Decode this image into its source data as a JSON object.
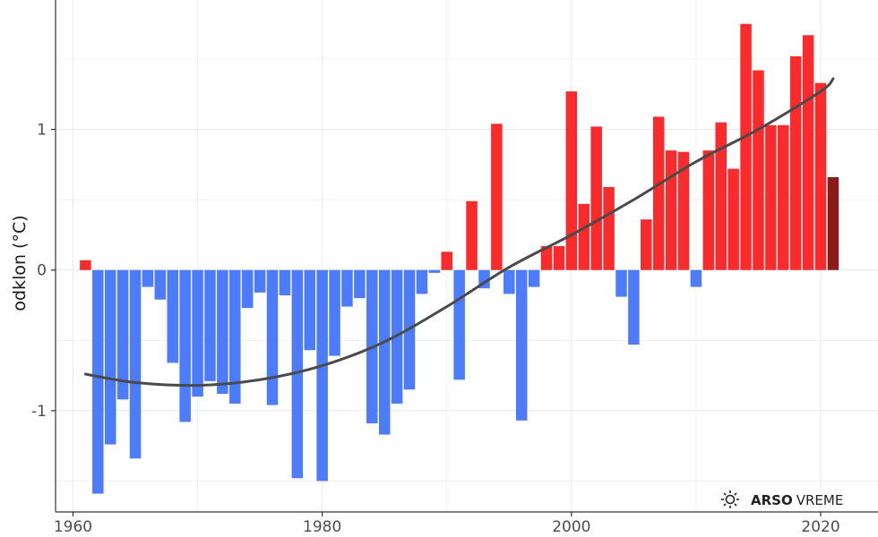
{
  "chart_data": {
    "type": "bar",
    "title": "",
    "xlabel": "",
    "ylabel": "odklon (°C)",
    "x": [
      1961,
      1962,
      1963,
      1964,
      1965,
      1966,
      1967,
      1968,
      1969,
      1970,
      1971,
      1972,
      1973,
      1974,
      1975,
      1976,
      1977,
      1978,
      1979,
      1980,
      1981,
      1982,
      1983,
      1984,
      1985,
      1986,
      1987,
      1988,
      1989,
      1990,
      1991,
      1992,
      1993,
      1994,
      1995,
      1996,
      1997,
      1998,
      1999,
      2000,
      2001,
      2002,
      2003,
      2004,
      2005,
      2006,
      2007,
      2008,
      2009,
      2010,
      2011,
      2012,
      2013,
      2014,
      2015,
      2016,
      2017,
      2018,
      2019,
      2020,
      2021
    ],
    "values": [
      0.07,
      -1.59,
      -1.24,
      -0.92,
      -1.34,
      -0.12,
      -0.21,
      -0.66,
      -1.08,
      -0.9,
      -0.79,
      -0.88,
      -0.95,
      -0.27,
      -0.16,
      -0.96,
      -0.18,
      -1.48,
      -0.57,
      -1.5,
      -0.61,
      -0.26,
      -0.2,
      -1.09,
      -1.17,
      -0.95,
      -0.85,
      -0.17,
      -0.02,
      0.13,
      -0.78,
      0.49,
      -0.13,
      1.04,
      -0.17,
      -1.07,
      -0.12,
      0.17,
      0.17,
      1.27,
      0.47,
      1.02,
      0.59,
      -0.19,
      -0.53,
      0.36,
      1.09,
      0.85,
      0.84,
      -0.12,
      0.85,
      1.05,
      0.72,
      1.75,
      1.42,
      1.03,
      1.03,
      1.52,
      1.67,
      1.33,
      0.66
    ],
    "trend": {
      "x": [
        1961,
        1965,
        1970,
        1975,
        1980,
        1985,
        1990,
        1995,
        2000,
        2005,
        2010,
        2015,
        2020,
        2021
      ],
      "y": [
        -0.74,
        -0.8,
        -0.82,
        -0.78,
        -0.68,
        -0.51,
        -0.26,
        0.02,
        0.25,
        0.5,
        0.77,
        1.0,
        1.27,
        1.36
      ]
    },
    "xticks": [
      1960,
      1980,
      2000,
      2020
    ],
    "yticks": [
      -1,
      0,
      1
    ],
    "xlim": [
      1958.6,
      2024.6
    ],
    "ylim": [
      -1.72,
      1.92
    ],
    "grid": true,
    "legend": "none",
    "colors": {
      "positive": "#f92b2d",
      "negative": "#4c7cfb",
      "current_year": "#8b1a1a",
      "trend": "#4a4a4a",
      "grid": "#ebebeb",
      "axis": "#333333"
    }
  },
  "logo": {
    "bold": "ARSO",
    "light": "VREME",
    "icon": "sun-cloud-icon"
  }
}
